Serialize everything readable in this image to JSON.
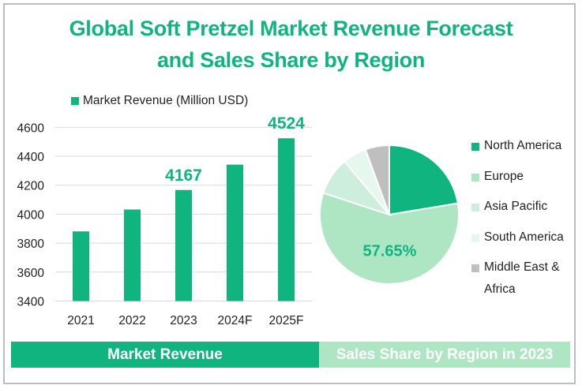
{
  "title_line1": "Global Soft Pretzel Market Revenue Forecast",
  "title_line2": "and Sales Share by Region",
  "colors": {
    "primary": "#10b47f",
    "europe": "#aee6c4",
    "asia_pacific": "#cdeedd",
    "south_america": "#e6f7ee",
    "mea": "#bfbfbf",
    "grid": "#d9d9d9",
    "band_right": "#aee6c4"
  },
  "chart_data": [
    {
      "type": "bar",
      "title": "Market Revenue",
      "legend": "Market Revenue (Million USD)",
      "legend_position": "top",
      "categories": [
        "2021",
        "2022",
        "2023",
        "2024F",
        "2025F"
      ],
      "values": [
        3881,
        4032,
        4167,
        4342,
        4524
      ],
      "data_labels": [
        {
          "category": "2023",
          "text": "4167"
        },
        {
          "category": "2025F",
          "text": "4524"
        }
      ],
      "ylim": [
        3400,
        4600
      ],
      "yticks": [
        3400,
        3600,
        3800,
        4000,
        4200,
        4400,
        4600
      ],
      "ytick_labels": [
        "3400",
        "3600",
        "3800",
        "4000",
        "4200",
        "4400",
        "4600"
      ],
      "xlabel": "",
      "ylabel": "",
      "grid": true
    },
    {
      "type": "pie",
      "title": "Sales Share by Region in 2023",
      "legend_position": "right",
      "labels": [
        "North America",
        "Europe",
        "Asia Pacific",
        "South America",
        "Middle East & Africa"
      ],
      "values": [
        22.4,
        57.65,
        8.8,
        5.55,
        5.6
      ],
      "unit": "%",
      "data_labels": [
        {
          "label": "Europe",
          "text": "57.65%"
        }
      ]
    }
  ],
  "footer": {
    "left_label": "Market Revenue",
    "right_label": "Sales Share by Region in 2023"
  }
}
